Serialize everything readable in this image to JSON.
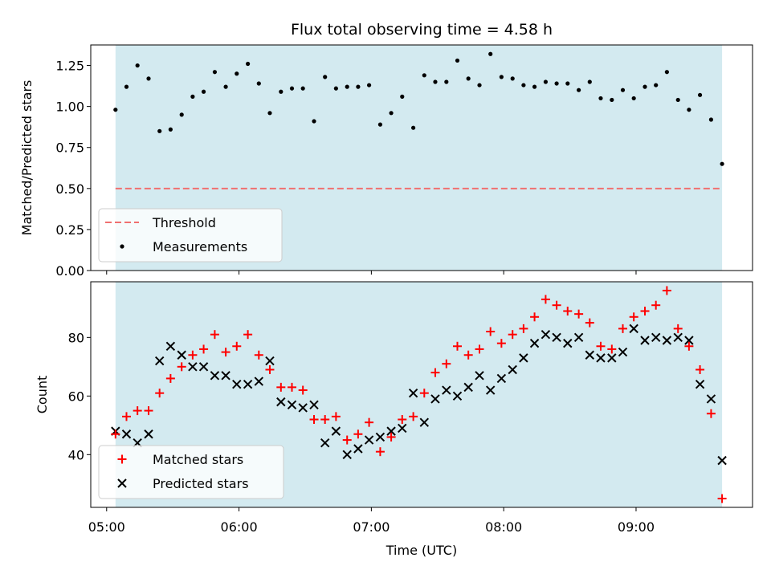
{
  "chart_data": {
    "title": "Flux total observing time = 4.58 h",
    "shared_x": {
      "label": "Time (UTC)",
      "unit": "hours UTC",
      "range": [
        4.88,
        9.88
      ],
      "ticks": [
        5,
        6,
        7,
        8,
        9
      ],
      "tick_labels": [
        "05:00",
        "06:00",
        "07:00",
        "08:00",
        "09:00"
      ]
    },
    "observing_window": {
      "start": 5.067,
      "end": 9.65,
      "color": "#d3eaf0"
    },
    "x": [
      5.067,
      5.15,
      5.233,
      5.317,
      5.4,
      5.483,
      5.567,
      5.65,
      5.733,
      5.817,
      5.9,
      5.983,
      6.067,
      6.15,
      6.233,
      6.317,
      6.4,
      6.483,
      6.567,
      6.65,
      6.733,
      6.817,
      6.9,
      6.983,
      7.067,
      7.15,
      7.233,
      7.317,
      7.4,
      7.483,
      7.567,
      7.65,
      7.733,
      7.817,
      7.9,
      7.983,
      8.067,
      8.15,
      8.233,
      8.317,
      8.4,
      8.483,
      8.567,
      8.65,
      8.733,
      8.817,
      8.9,
      8.983,
      9.067,
      9.15,
      9.233,
      9.317,
      9.4,
      9.483,
      9.567,
      9.65
    ],
    "panels": [
      {
        "type": "scatter",
        "ylabel": "Matched/Predicted stars",
        "ylim": [
          0,
          1.375
        ],
        "yticks": [
          0.0,
          0.25,
          0.5,
          0.75,
          1.0,
          1.25
        ],
        "ytick_labels": [
          "0.00",
          "0.25",
          "0.50",
          "0.75",
          "1.00",
          "1.25"
        ],
        "threshold": {
          "name": "Threshold",
          "value": 0.5,
          "color": "#f07070"
        },
        "series": [
          {
            "name": "Measurements",
            "marker": "dot",
            "color": "#000000",
            "values": [
              0.98,
              1.12,
              1.25,
              1.17,
              0.85,
              0.86,
              0.95,
              1.06,
              1.09,
              1.21,
              1.12,
              1.2,
              1.26,
              1.14,
              0.96,
              1.09,
              1.11,
              1.11,
              0.91,
              1.18,
              1.11,
              1.12,
              1.12,
              1.13,
              0.89,
              0.96,
              1.06,
              0.87,
              1.19,
              1.15,
              1.15,
              1.28,
              1.17,
              1.13,
              1.32,
              1.18,
              1.17,
              1.13,
              1.12,
              1.15,
              1.14,
              1.14,
              1.1,
              1.15,
              1.05,
              1.04,
              1.1,
              1.05,
              1.12,
              1.13,
              1.21,
              1.04,
              0.98,
              1.07,
              0.92,
              0.65
            ]
          }
        ],
        "legend": {
          "position": "lower-left",
          "entries": [
            "Threshold",
            "Measurements"
          ]
        }
      },
      {
        "type": "scatter",
        "ylabel": "Count",
        "ylim": [
          22,
          99
        ],
        "yticks": [
          40,
          60,
          80
        ],
        "ytick_labels": [
          "40",
          "60",
          "80"
        ],
        "series": [
          {
            "name": "Matched stars",
            "marker": "plus",
            "color": "#ff0000",
            "values": [
              47,
              53,
              55,
              55,
              61,
              66,
              70,
              74,
              76,
              81,
              75,
              77,
              81,
              74,
              69,
              63,
              63,
              62,
              52,
              52,
              53,
              45,
              47,
              51,
              41,
              46,
              52,
              53,
              61,
              68,
              71,
              77,
              74,
              76,
              82,
              78,
              81,
              83,
              87,
              93,
              91,
              89,
              88,
              85,
              77,
              76,
              83,
              87,
              89,
              91,
              96,
              83,
              77,
              69,
              54,
              25
            ]
          },
          {
            "name": "Predicted stars",
            "marker": "x",
            "color": "#000000",
            "values": [
              48,
              47,
              44,
              47,
              72,
              77,
              74,
              70,
              70,
              67,
              67,
              64,
              64,
              65,
              72,
              58,
              57,
              56,
              57,
              44,
              48,
              40,
              42,
              45,
              46,
              48,
              49,
              61,
              51,
              59,
              62,
              60,
              63,
              67,
              62,
              66,
              69,
              73,
              78,
              81,
              80,
              78,
              80,
              74,
              73,
              73,
              75,
              83,
              79,
              80,
              79,
              80,
              79,
              64,
              59,
              38
            ]
          }
        ],
        "legend": {
          "position": "lower-left",
          "entries": [
            "Matched stars",
            "Predicted stars"
          ]
        }
      }
    ]
  }
}
